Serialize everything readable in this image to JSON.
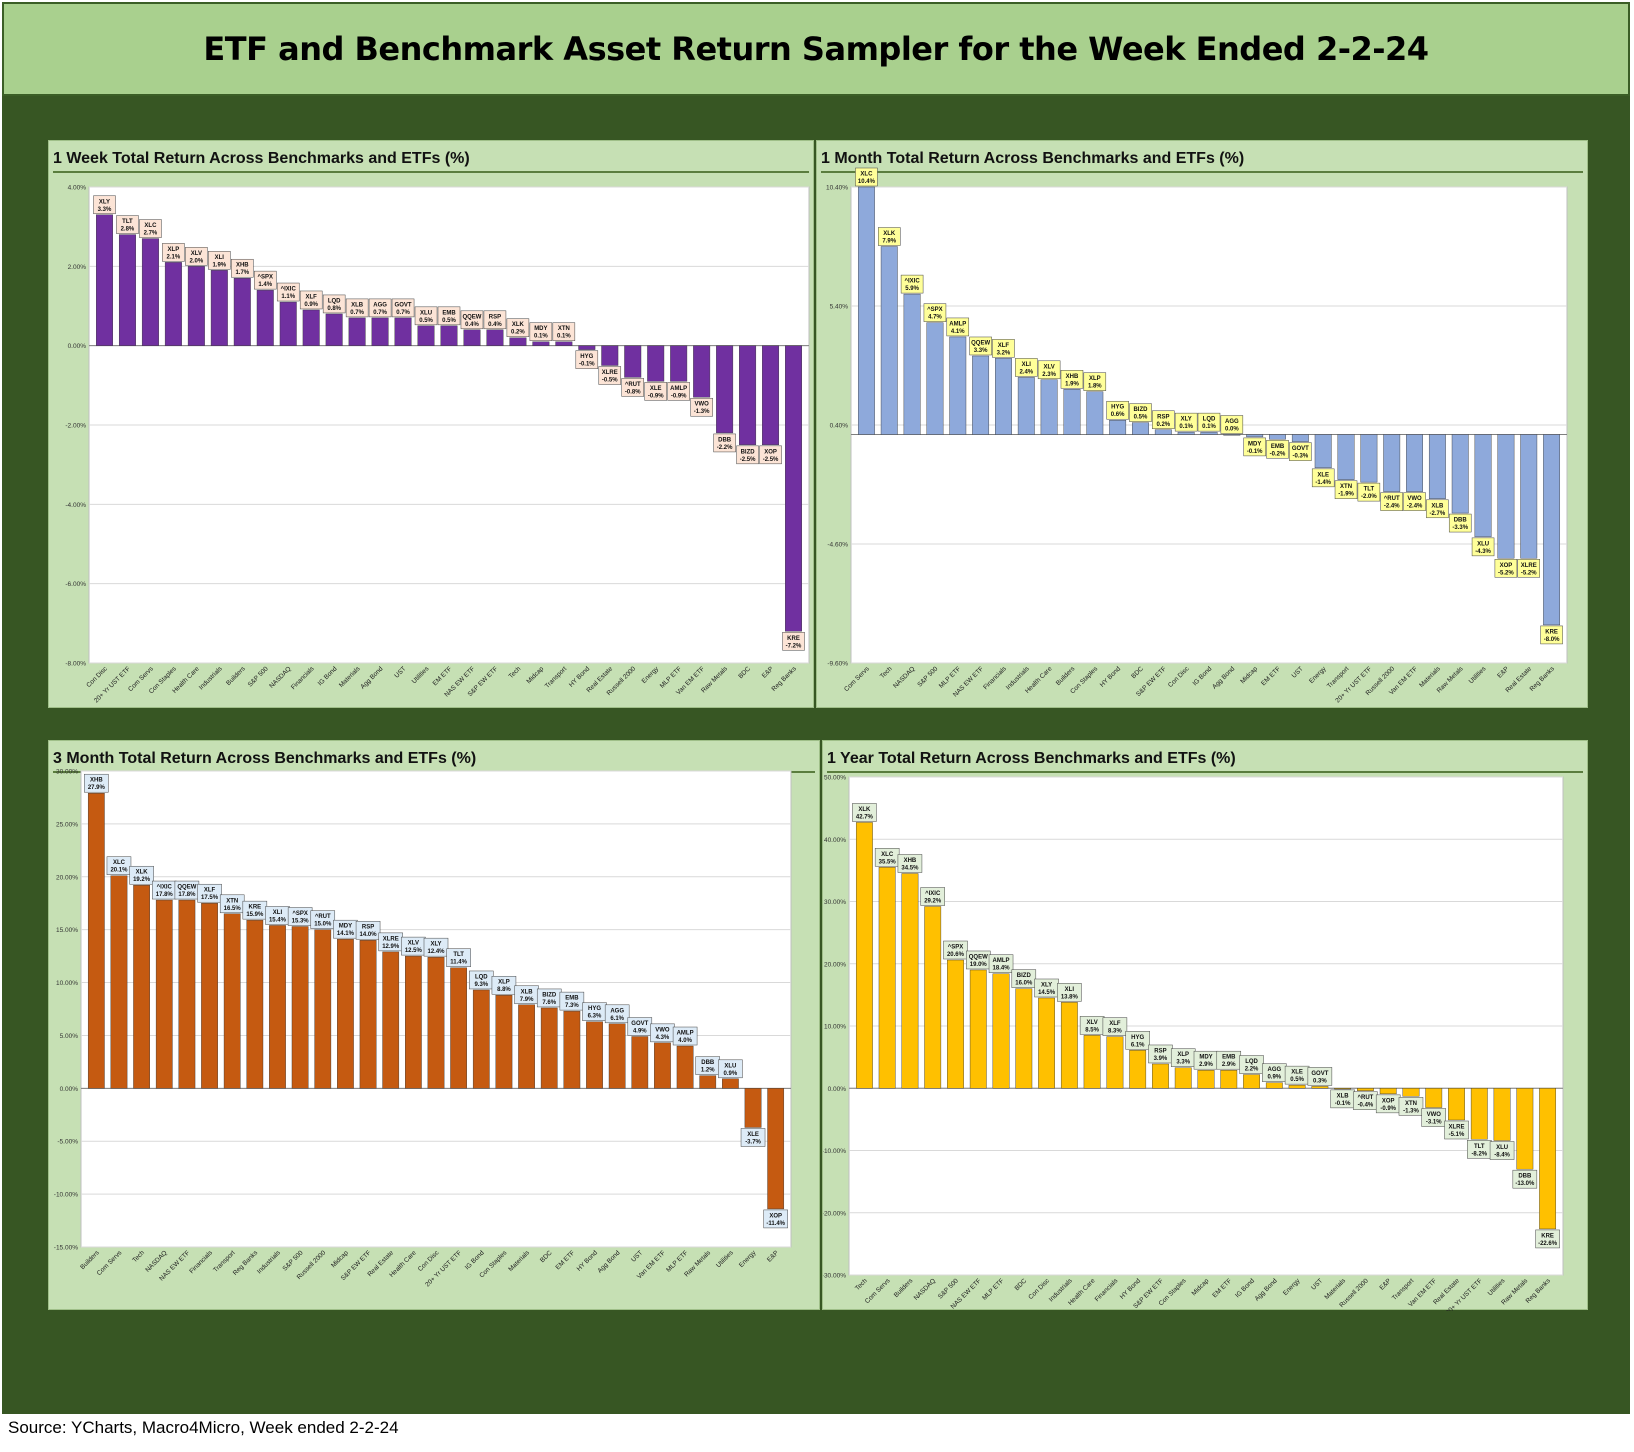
{
  "header": {
    "title": "ETF and Benchmark Asset Return Sampler for the Week Ended 2-2-24"
  },
  "footer": {
    "source": "Source: YCharts, Macro4Micro, Week ended 2-2-24"
  },
  "colors": {
    "week": "#7030a0",
    "month": "#8ea9db",
    "three_month": "#c55a11",
    "year": "#ffc000",
    "label_week": "#fce4d6",
    "label_month": "#ffff99",
    "label_three_month": "#ddebf7",
    "label_year": "#e2efda"
  },
  "chart_data": [
    {
      "id": "week",
      "type": "bar",
      "title": "1 Week Total Return Across Benchmarks and ETFs (%)",
      "ylim": [
        -8,
        4
      ],
      "yticks": [
        4,
        2,
        0,
        -2,
        -4,
        -6,
        -8
      ],
      "ytick_labels": [
        "4.00%",
        "2.00%",
        "0.00%",
        "-2.00%",
        "-4.00%",
        "-6.00%",
        "-8.00%"
      ],
      "categories": [
        "Con Disc",
        "20+ Yr UST ETF",
        "Com Servs",
        "Con Staples",
        "Health Care",
        "Industrials",
        "Builders",
        "S&P 500",
        "NASDAQ",
        "Financials",
        "IG Bond",
        "Materials",
        "Agg Bond",
        "UST",
        "Utilities",
        "EM ETF",
        "NAS EW ETF",
        "S&P EW ETF",
        "Tech",
        "Midcap",
        "Transport",
        "HY Bond",
        "Real Estate",
        "Russell 2000",
        "Energy",
        "MLP ETF",
        "Van EM ETF",
        "Raw Metals",
        "BDC",
        "E&P",
        "Reg Banks"
      ],
      "tickers": [
        "XLY",
        "TLT",
        "XLC",
        "XLP",
        "XLV",
        "XLI",
        "XHB",
        "^SPX",
        "^IXIC",
        "XLF",
        "LQD",
        "XLB",
        "AGG",
        "GOVT",
        "XLU",
        "EMB",
        "QQEW",
        "RSP",
        "XLK",
        "MDY",
        "XTN",
        "HYG",
        "XLRE",
        "^RUT",
        "XLE",
        "AMLP",
        "VWO",
        "DBB",
        "BIZD",
        "XOP",
        "KRE"
      ],
      "values": [
        3.3,
        2.8,
        2.7,
        2.1,
        2.0,
        1.9,
        1.7,
        1.4,
        1.1,
        0.9,
        0.8,
        0.7,
        0.7,
        0.7,
        0.5,
        0.5,
        0.4,
        0.4,
        0.2,
        0.1,
        0.1,
        -0.1,
        -0.5,
        -0.8,
        -0.9,
        -0.9,
        -1.3,
        -2.2,
        -2.5,
        -2.5,
        -7.2
      ],
      "value_labels": [
        "3.3%",
        "2.8%",
        "2.7%",
        "2.1%",
        "2.0%",
        "1.9%",
        "1.7%",
        "1.4%",
        "1.1%",
        "0.9%",
        "0.8%",
        "0.7%",
        "0.7%",
        "0.7%",
        "0.5%",
        "0.5%",
        "0.4%",
        "0.4%",
        "0.2%",
        "0.1%",
        "0.1%",
        "-0.1%",
        "-0.5%",
        "-0.8%",
        "-0.9%",
        "-0.9%",
        "-1.3%",
        "-2.2%",
        "-2.5%",
        "-2.5%",
        "-7.2%"
      ]
    },
    {
      "id": "month",
      "type": "bar",
      "title": "1 Month Total Return Across Benchmarks and ETFs (%)",
      "ylim": [
        -9.6,
        10.4
      ],
      "yticks": [
        10.4,
        5.4,
        0.4,
        -4.6,
        -9.6
      ],
      "ytick_labels": [
        "10.40%",
        "5.40%",
        "0.40%",
        "-4.60%",
        "-9.60%"
      ],
      "categories": [
        "Com Servs",
        "Tech",
        "NASDAQ",
        "S&P 500",
        "MLP ETF",
        "NAS EW ETF",
        "Financials",
        "Industrials",
        "Health Care",
        "Builders",
        "Con Staples",
        "HY Bond",
        "BDC",
        "S&P EW ETF",
        "Con Disc",
        "IG Bond",
        "Agg Bond",
        "Midcap",
        "EM ETF",
        "UST",
        "Energy",
        "Transport",
        "20+ Yr UST ETF",
        "Russell 2000",
        "Van EM ETF",
        "Materials",
        "Raw Metals",
        "Utilities",
        "E&P",
        "Real Estate",
        "Reg Banks"
      ],
      "tickers": [
        "XLC",
        "XLK",
        "^IXIC",
        "^SPX",
        "AMLP",
        "QQEW",
        "XLF",
        "XLI",
        "XLV",
        "XHB",
        "XLP",
        "HYG",
        "BIZD",
        "RSP",
        "XLY",
        "LQD",
        "AGG",
        "MDY",
        "EMB",
        "GOVT",
        "XLE",
        "XTN",
        "TLT",
        "^RUT",
        "VWO",
        "XLB",
        "DBB",
        "XLU",
        "XOP",
        "XLRE",
        "KRE"
      ],
      "values": [
        10.4,
        7.9,
        5.9,
        4.7,
        4.1,
        3.3,
        3.2,
        2.4,
        2.3,
        1.9,
        1.8,
        0.6,
        0.5,
        0.2,
        0.1,
        0.1,
        0.0,
        -0.1,
        -0.2,
        -0.3,
        -1.4,
        -1.9,
        -2.0,
        -2.4,
        -2.4,
        -2.7,
        -3.3,
        -4.3,
        -5.2,
        -5.2,
        -8.0
      ],
      "value_labels": [
        "10.4%",
        "7.9%",
        "5.9%",
        "4.7%",
        "4.1%",
        "3.3%",
        "3.2%",
        "2.4%",
        "2.3%",
        "1.9%",
        "1.8%",
        "0.6%",
        "0.5%",
        "0.2%",
        "0.1%",
        "0.1%",
        "0.0%",
        "-0.1%",
        "-0.2%",
        "-0.3%",
        "-1.4%",
        "-1.9%",
        "-2.0%",
        "-2.4%",
        "-2.4%",
        "-2.7%",
        "-3.3%",
        "-4.3%",
        "-5.2%",
        "-5.2%",
        "-8.0%"
      ]
    },
    {
      "id": "three_month",
      "type": "bar",
      "title": "3 Month Total Return Across Benchmarks and ETFs (%)",
      "ylim": [
        -15,
        30
      ],
      "yticks": [
        30,
        25,
        20,
        15,
        10,
        5,
        0,
        -5,
        -10,
        -15
      ],
      "ytick_labels": [
        "30.00%",
        "25.00%",
        "20.00%",
        "15.00%",
        "10.00%",
        "5.00%",
        "0.00%",
        "-5.00%",
        "-10.00%",
        "-15.00%"
      ],
      "categories": [
        "Builders",
        "Com Servs",
        "Tech",
        "NASDAQ",
        "NAS EW ETF",
        "Financials",
        "Transport",
        "Reg Banks",
        "Industrials",
        "S&P 500",
        "Russell 2000",
        "Midcap",
        "S&P EW ETF",
        "Real Estate",
        "Health Care",
        "Con Disc",
        "20+ Yr UST ETF",
        "IG Bond",
        "Con Staples",
        "Materials",
        "BDC",
        "EM ETF",
        "HY Bond",
        "Agg Bond",
        "UST",
        "Van EM ETF",
        "MLP ETF",
        "Raw Metals",
        "Utilities",
        "Energy",
        "E&P"
      ],
      "tickers": [
        "XHB",
        "XLC",
        "XLK",
        "^IXIC",
        "QQEW",
        "XLF",
        "XTN",
        "KRE",
        "XLI",
        "^SPX",
        "^RUT",
        "MDY",
        "RSP",
        "XLRE",
        "XLV",
        "XLY",
        "TLT",
        "LQD",
        "XLP",
        "XLB",
        "BIZD",
        "EMB",
        "HYG",
        "AGG",
        "GOVT",
        "VWO",
        "AMLP",
        "DBB",
        "XLU",
        "XLE",
        "XOP"
      ],
      "values": [
        27.9,
        20.1,
        19.2,
        17.8,
        17.8,
        17.5,
        16.5,
        15.9,
        15.4,
        15.3,
        15.0,
        14.1,
        14.0,
        12.9,
        12.5,
        12.4,
        11.4,
        9.3,
        8.8,
        7.9,
        7.6,
        7.3,
        6.3,
        6.1,
        4.9,
        4.3,
        4.0,
        1.2,
        0.9,
        -3.7,
        -11.4
      ],
      "value_labels": [
        "27.9%",
        "20.1%",
        "19.2%",
        "17.8%",
        "17.8%",
        "17.5%",
        "16.5%",
        "15.9%",
        "15.4%",
        "15.3%",
        "15.0%",
        "14.1%",
        "14.0%",
        "12.9%",
        "12.5%",
        "12.4%",
        "11.4%",
        "9.3%",
        "8.8%",
        "7.9%",
        "7.6%",
        "7.3%",
        "6.3%",
        "6.1%",
        "4.9%",
        "4.3%",
        "4.0%",
        "1.2%",
        "0.9%",
        "-3.7%",
        "-11.4%"
      ]
    },
    {
      "id": "year",
      "type": "bar",
      "title": "1 Year Total Return Across Benchmarks and ETFs (%)",
      "ylim": [
        -30,
        50
      ],
      "yticks": [
        50,
        40,
        30,
        20,
        10,
        0,
        -10,
        -20,
        -30
      ],
      "ytick_labels": [
        "50.00%",
        "40.00%",
        "30.00%",
        "20.00%",
        "10.00%",
        "0.00%",
        "-10.00%",
        "-20.00%",
        "-30.00%"
      ],
      "categories": [
        "Tech",
        "Com Servs",
        "Builders",
        "NASDAQ",
        "S&P 500",
        "NAS EW ETF",
        "MLP ETF",
        "BDC",
        "Con Disc",
        "Industrials",
        "Health Care",
        "Financials",
        "HY Bond",
        "S&P EW ETF",
        "Con Staples",
        "Midcap",
        "EM ETF",
        "IG Bond",
        "Agg Bond",
        "Energy",
        "UST",
        "Materials",
        "Russell 2000",
        "E&P",
        "Transport",
        "Van EM ETF",
        "Real Estate",
        "20+ Yr UST ETF",
        "Utilities",
        "Raw Metals",
        "Reg Banks"
      ],
      "tickers": [
        "XLK",
        "XLC",
        "XHB",
        "^IXIC",
        "^SPX",
        "QQEW",
        "AMLP",
        "BIZD",
        "XLY",
        "XLI",
        "XLV",
        "XLF",
        "HYG",
        "RSP",
        "XLP",
        "MDY",
        "EMB",
        "LQD",
        "AGG",
        "XLE",
        "GOVT",
        "XLB",
        "^RUT",
        "XOP",
        "XTN",
        "VWO",
        "XLRE",
        "TLT",
        "XLU",
        "DBB",
        "KRE"
      ],
      "values": [
        42.7,
        35.5,
        34.5,
        29.2,
        20.6,
        19.0,
        18.4,
        16.0,
        14.5,
        13.8,
        8.5,
        8.3,
        6.1,
        3.9,
        3.3,
        2.9,
        2.9,
        2.2,
        0.9,
        0.5,
        0.3,
        -0.1,
        -0.4,
        -0.9,
        -1.3,
        -3.1,
        -5.1,
        -8.2,
        -8.4,
        -13.0,
        -22.6
      ],
      "value_labels": [
        "42.7%",
        "35.5%",
        "34.5%",
        "29.2%",
        "20.6%",
        "19.0%",
        "18.4%",
        "16.0%",
        "14.5%",
        "13.8%",
        "8.5%",
        "8.3%",
        "6.1%",
        "3.9%",
        "3.3%",
        "2.9%",
        "2.9%",
        "2.2%",
        "0.9%",
        "0.5%",
        "0.3%",
        "-0.1%",
        "-0.4%",
        "-0.9%",
        "-1.3%",
        "-3.1%",
        "-5.1%",
        "-8.2%",
        "-8.4%",
        "-13.0%",
        "-22.6%"
      ]
    }
  ]
}
